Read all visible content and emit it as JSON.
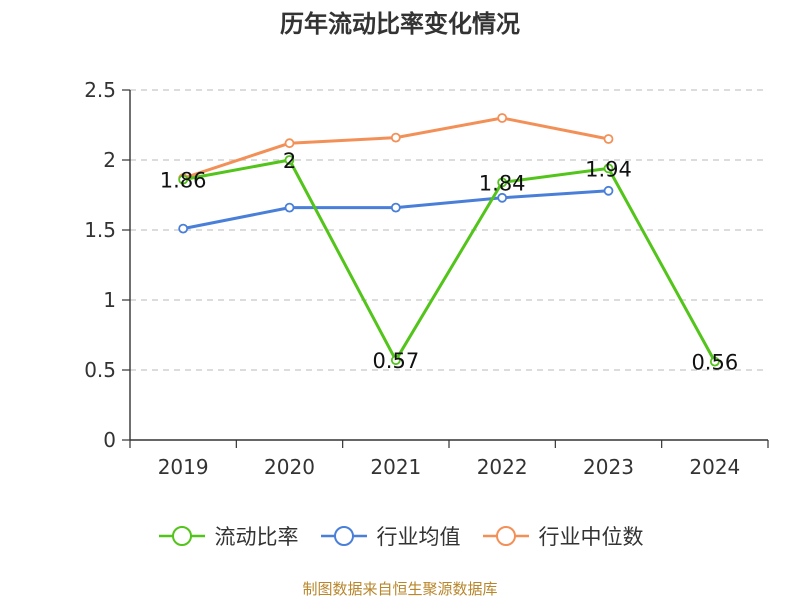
{
  "title": "历年流动比率变化情况",
  "source": "制图数据来自恒生聚源数据库",
  "chart_data": {
    "type": "line",
    "title": "历年流动比率变化情况",
    "categories": [
      "2019",
      "2020",
      "2021",
      "2022",
      "2023",
      "2024"
    ],
    "ylim": [
      0,
      2.5
    ],
    "yticks": [
      "0",
      "0.5",
      "1",
      "1.5",
      "2",
      "2.5"
    ],
    "grid": true,
    "legend_position": "bottom",
    "series": [
      {
        "name": "流动比率",
        "color": "#52c41a",
        "values": [
          1.86,
          2,
          0.57,
          1.84,
          1.94,
          0.56
        ],
        "labels": [
          "1.86",
          "2",
          "0.57",
          "1.84",
          "1.94",
          "0.56"
        ]
      },
      {
        "name": "行业均值",
        "color": "#4a7fd9",
        "values": [
          1.51,
          1.66,
          1.66,
          1.73,
          1.78,
          null
        ]
      },
      {
        "name": "行业中位数",
        "color": "#f39057",
        "values": [
          1.87,
          2.12,
          2.16,
          2.3,
          2.15,
          null
        ]
      }
    ]
  }
}
